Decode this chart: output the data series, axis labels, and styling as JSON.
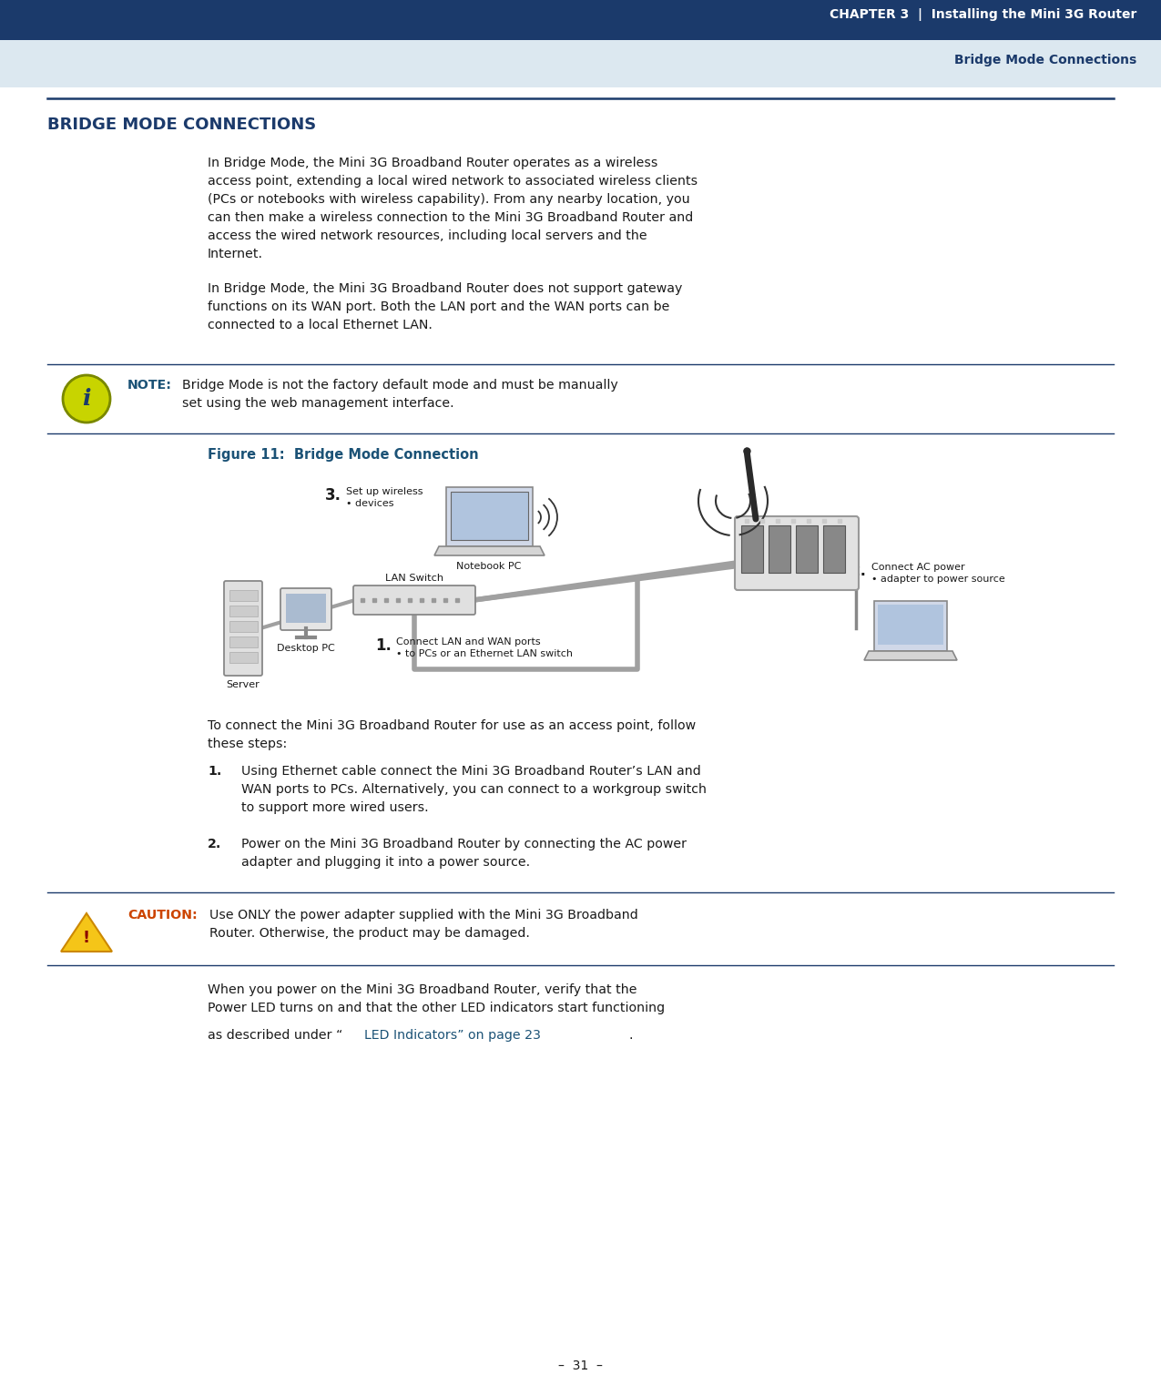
{
  "header_bg_color": "#1b3a6b",
  "header_light_color": "#dce8f0",
  "header_text_color": "#1b3a6b",
  "header_chapter": "CHAPTER 3",
  "header_chapter2": "Installing the Mini 3G Router",
  "header_sub": "Bridge Mode Connections",
  "page_bg": "#ffffff",
  "section_title": "BRIDGE MODE CONNECTIONS",
  "section_title_color": "#1b3a6b",
  "body_color": "#1a1a1a",
  "blue_color": "#1b5276",
  "note_color": "#1b5276",
  "figure_label": "Figure 11:  Bridge Mode Connection",
  "figure_label_color": "#1b5276",
  "notebook_label": "Notebook PC",
  "lan_switch_label": "LAN Switch",
  "server_label": "Server",
  "desktop_label": "Desktop PC",
  "link_color": "#1b5276",
  "page_num": "–  31  –",
  "separator_color": "#1b3a6b",
  "caution_color": "#cc4400"
}
